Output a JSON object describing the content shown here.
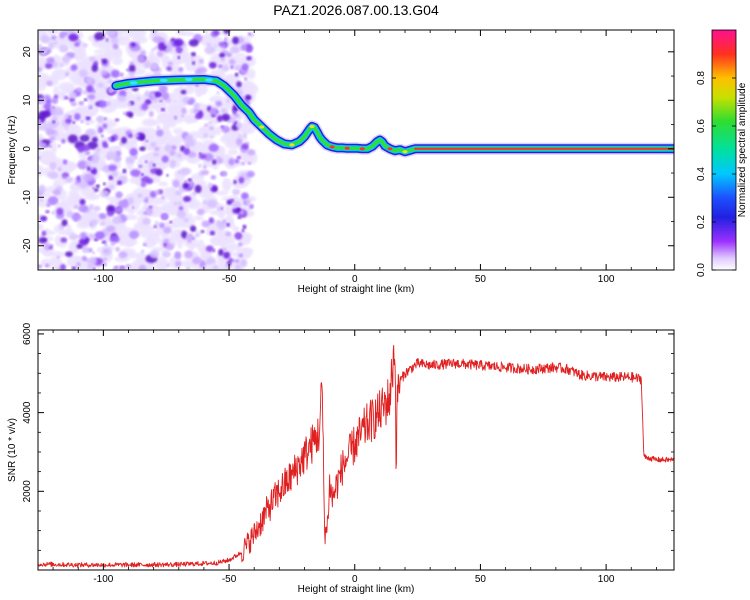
{
  "title": "PAZ1.2026.087.00.13.G04",
  "colors": {
    "snr_line": "#e02020",
    "ridge_core": "#ff2a2a",
    "ridge_green": "#33dd33",
    "ridge_cyan": "#00ccee",
    "ridge_blue": "#2222dd",
    "speckle": "#7a2be0"
  },
  "chart_data": [
    {
      "type": "heatmap",
      "title": "PAZ1.2026.087.00.13.G04",
      "xlabel": "Height of straight line (km)",
      "ylabel": "Frequency (Hz)",
      "xlim": [
        -126,
        127
      ],
      "ylim": [
        -25,
        24.5
      ],
      "xticks": [
        -100,
        -50,
        0,
        50,
        100
      ],
      "xtick_labels": [
        "-100",
        "-50",
        "0",
        "50",
        "100"
      ],
      "yticks": [
        -20,
        -10,
        0,
        10,
        20
      ],
      "ytick_labels": [
        "-20",
        "-10",
        "0",
        "10",
        "20"
      ],
      "noise_region": {
        "x": [
          -126,
          -43
        ],
        "y": [
          -25,
          24.5
        ]
      },
      "ridge": {
        "x": [
          -95,
          -90,
          -80,
          -70,
          -60,
          -55,
          -52,
          -48,
          -45,
          -42,
          -40,
          -37,
          -34,
          -31,
          -28,
          -25,
          -22,
          -20,
          -18,
          -17,
          -16,
          -15,
          -14,
          -13,
          -11,
          -9,
          -7,
          -5,
          -3,
          -1,
          1,
          3,
          5,
          7,
          8,
          9,
          10,
          11,
          12,
          14,
          16,
          18,
          20,
          22,
          24,
          28,
          40,
          60,
          80,
          100,
          120,
          127
        ],
        "y": [
          13,
          13.5,
          14,
          14.2,
          14.3,
          14,
          13,
          11,
          9,
          7.5,
          6,
          4.5,
          3,
          1.8,
          1,
          0.8,
          1.5,
          2.5,
          4,
          4.6,
          4.4,
          3.5,
          2.5,
          1.8,
          0.8,
          0.4,
          0.2,
          0.2,
          0.1,
          0.1,
          0.1,
          0,
          0,
          0.5,
          1,
          1.5,
          1.8,
          1.4,
          0.6,
          0,
          -0.4,
          -0.2,
          -0.6,
          -0.3,
          0,
          0,
          0,
          0,
          0,
          0,
          0,
          0
        ]
      },
      "colorbar": {
        "label": "Normalized spectral amplitude",
        "range": [
          0,
          1
        ],
        "ticks": [
          0,
          0.2,
          0.4,
          0.6,
          0.8
        ],
        "tick_labels": [
          "0.0",
          "0.2",
          "0.4",
          "0.6",
          "0.8"
        ]
      }
    },
    {
      "type": "line",
      "xlabel": "Height of straight line (km)",
      "ylabel": "SNR (10 * v/v)",
      "xlim": [
        -126,
        127
      ],
      "ylim": [
        0,
        6100
      ],
      "xticks": [
        -100,
        -50,
        0,
        50,
        100
      ],
      "xtick_labels": [
        "-100",
        "-50",
        "0",
        "50",
        "100"
      ],
      "yticks": [
        2000,
        4000,
        6000
      ],
      "ytick_labels": [
        "2000",
        "4000",
        "6000"
      ],
      "series": [
        {
          "name": "SNR",
          "x": [
            -126,
            -110,
            -90,
            -70,
            -55,
            -50,
            -45,
            -40,
            -35,
            -30,
            -25,
            -20,
            -16,
            -14,
            -13,
            -12,
            -11,
            -10,
            -9,
            -5,
            0,
            5,
            10,
            14,
            16,
            16.5,
            17,
            18,
            20,
            25,
            30,
            40,
            50,
            60,
            70,
            80,
            85,
            90,
            100,
            110,
            114,
            115,
            116,
            117,
            120,
            127
          ],
          "y": [
            150,
            130,
            130,
            140,
            180,
            250,
            450,
            900,
            1500,
            2000,
            2400,
            2900,
            3300,
            3500,
            4800,
            1000,
            1000,
            2200,
            1800,
            2600,
            3200,
            3700,
            4000,
            4400,
            5800,
            2400,
            4600,
            4800,
            5000,
            5250,
            5200,
            5250,
            5200,
            5150,
            5100,
            5150,
            5100,
            4950,
            4900,
            4900,
            4850,
            2900,
            2850,
            2850,
            2800,
            2800
          ]
        }
      ]
    }
  ]
}
